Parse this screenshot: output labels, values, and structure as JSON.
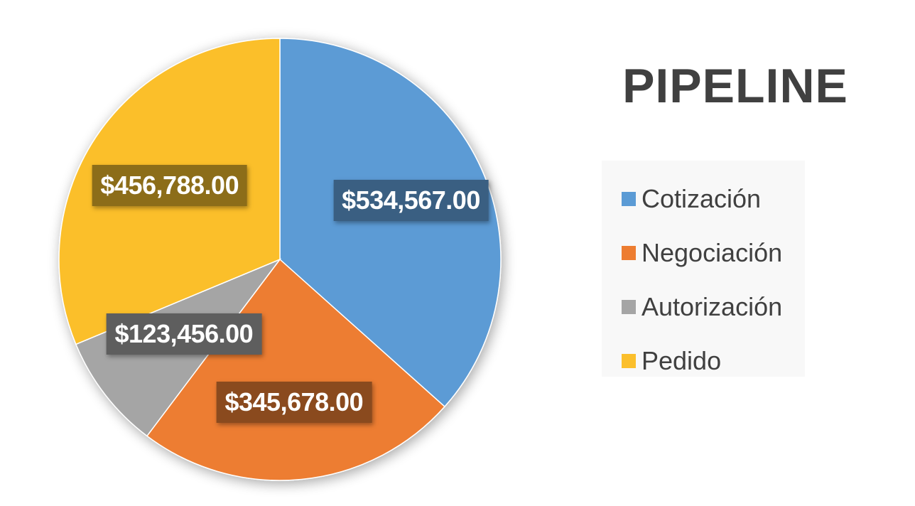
{
  "chart_data": {
    "type": "pie",
    "title": "PIPELINE",
    "categories": [
      "Cotización",
      "Negociación",
      "Autorización",
      "Pedido"
    ],
    "values": [
      534567.0,
      345678.0,
      123456.0,
      456788.0
    ],
    "labels": [
      "$534,567.00",
      "$345,678.00",
      "$123,456.00",
      "$456,788.00"
    ],
    "colors": [
      "#5b9bd5",
      "#ed7d31",
      "#a5a5a5",
      "#fbbf2c"
    ],
    "label_backgrounds": [
      "#3a5f82",
      "#8a4a1e",
      "#5e5e5e",
      "#8c6d19"
    ],
    "legend_position": "right",
    "start_angle_deg": 0,
    "direction": "clockwise"
  }
}
